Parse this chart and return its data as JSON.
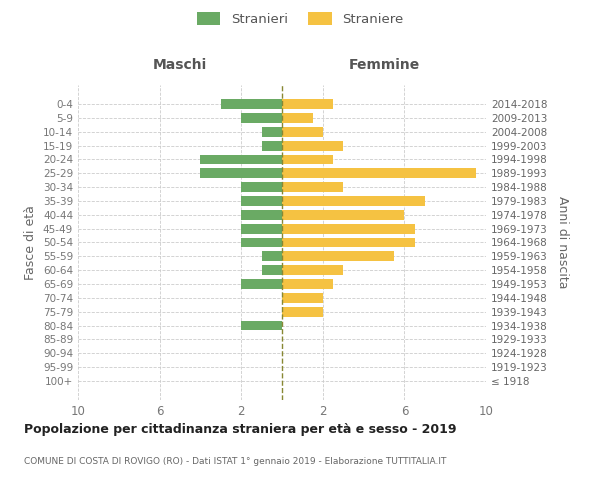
{
  "age_groups": [
    "100+",
    "95-99",
    "90-94",
    "85-89",
    "80-84",
    "75-79",
    "70-74",
    "65-69",
    "60-64",
    "55-59",
    "50-54",
    "45-49",
    "40-44",
    "35-39",
    "30-34",
    "25-29",
    "20-24",
    "15-19",
    "10-14",
    "5-9",
    "0-4"
  ],
  "birth_years": [
    "≤ 1918",
    "1919-1923",
    "1924-1928",
    "1929-1933",
    "1934-1938",
    "1939-1943",
    "1944-1948",
    "1949-1953",
    "1954-1958",
    "1959-1963",
    "1964-1968",
    "1969-1973",
    "1974-1978",
    "1979-1983",
    "1984-1988",
    "1989-1993",
    "1994-1998",
    "1999-2003",
    "2004-2008",
    "2009-2013",
    "2014-2018"
  ],
  "maschi": [
    0,
    0,
    0,
    0,
    2,
    0,
    0,
    2,
    1,
    1,
    2,
    2,
    2,
    2,
    2,
    4,
    4,
    1,
    1,
    2,
    3
  ],
  "femmine": [
    0,
    0,
    0,
    0,
    0,
    2,
    2,
    2.5,
    3,
    5.5,
    6.5,
    6.5,
    6,
    7,
    3,
    9.5,
    2.5,
    3,
    2,
    1.5,
    2.5
  ],
  "male_color": "#6aaa64",
  "female_color": "#f5c242",
  "center_line_color": "#888833",
  "background_color": "#ffffff",
  "grid_color": "#cccccc",
  "title_main": "Popolazione per cittadinanza straniera per età e sesso - 2019",
  "title_sub": "COMUNE DI COSTA DI ROVIGO (RO) - Dati ISTAT 1° gennaio 2019 - Elaborazione TUTTITALIA.IT",
  "legend_stranieri": "Stranieri",
  "legend_straniere": "Straniere",
  "xlabel_maschi": "Maschi",
  "xlabel_femmine": "Femmine",
  "ylabel_left": "Fasce di età",
  "ylabel_right": "Anni di nascita",
  "xlim": 10,
  "bar_height": 0.7,
  "xticks": [
    -10,
    -6,
    -2,
    2,
    6,
    10
  ],
  "xticklabels": [
    "10",
    "6",
    "2",
    "2",
    "6",
    "10"
  ]
}
